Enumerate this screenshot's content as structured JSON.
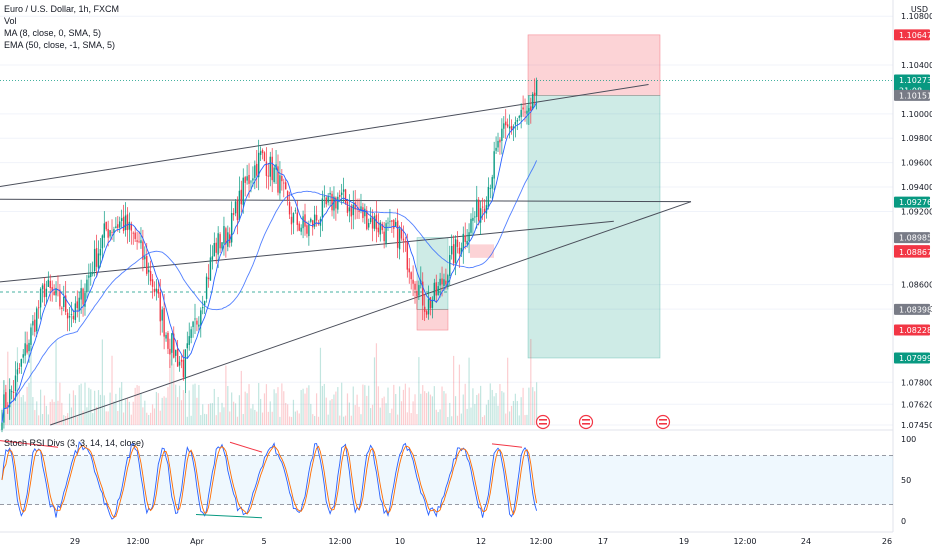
{
  "legend": {
    "title": "Euro / U.S. Dollar, 1h, FXCM",
    "vol": "Vol",
    "ma": "MA (8, close, 0, SMA, 5)",
    "ema": "EMA (50, close, -1, SMA, 5)",
    "stoch": "Stoch RSI Divs (3, 3, 14, 14, close)"
  },
  "price_axis": {
    "currency": "USD",
    "ticks": [
      "1.10800",
      "1.10400",
      "1.10000",
      "1.09800",
      "1.09600",
      "1.09400",
      "1.09200",
      "1.08600",
      "1.08400",
      "1.07800",
      "1.07620",
      "1.07450"
    ],
    "tags": [
      {
        "label": "1.10647",
        "color": "#f23645",
        "style": "solid"
      },
      {
        "label": "1.10273",
        "sub": "21:08",
        "color": "#089981",
        "style": "solid"
      },
      {
        "label": "1.10151",
        "color": "#787b86",
        "style": "solid"
      },
      {
        "label": "1.09276",
        "color": "#089981",
        "style": "solid"
      },
      {
        "label": "1.08985",
        "color": "#787b86",
        "style": "solid"
      },
      {
        "label": "1.08879",
        "color": "#f23645",
        "style": "solid"
      },
      {
        "label": "1.08867",
        "color": "#f23645",
        "style": "solid"
      },
      {
        "label": "1.08398",
        "color": "#787b86",
        "style": "solid"
      },
      {
        "label": "1.08228",
        "color": "#f23645",
        "style": "solid"
      },
      {
        "label": "1.07999",
        "color": "#089981",
        "style": "solid"
      }
    ]
  },
  "osc_axis": {
    "ticks": [
      "100",
      "50",
      "0"
    ]
  },
  "time_axis": {
    "ticks": [
      "29",
      "12:00",
      "Apr",
      "5",
      "12:00",
      "10",
      "12",
      "12:00",
      "17",
      "19",
      "12:00",
      "24",
      "26"
    ]
  },
  "colors": {
    "up": "#089981",
    "down": "#f23645",
    "ma": "#2962ff",
    "ema": "#2962ff",
    "k": "#2962ff",
    "d": "#ff6d00"
  },
  "chart_data": {
    "type": "candlestick",
    "title": "Euro / U.S. Dollar, 1h, FXCM",
    "ylim": [
      1.0745,
      1.109
    ],
    "anchors": [
      [
        0,
        1.0758
      ],
      [
        6,
        1.0775
      ],
      [
        14,
        1.0815
      ],
      [
        22,
        1.0858
      ],
      [
        30,
        1.0845
      ],
      [
        38,
        1.0835
      ],
      [
        46,
        1.0872
      ],
      [
        54,
        1.0905
      ],
      [
        62,
        1.0912
      ],
      [
        70,
        1.0895
      ],
      [
        78,
        1.0862
      ],
      [
        86,
        1.0815
      ],
      [
        94,
        1.0792
      ],
      [
        102,
        1.0838
      ],
      [
        110,
        1.089
      ],
      [
        118,
        1.0905
      ],
      [
        126,
        1.0942
      ],
      [
        134,
        1.0965
      ],
      [
        142,
        1.095
      ],
      [
        150,
        1.0915
      ],
      [
        158,
        1.0905
      ],
      [
        166,
        1.092
      ],
      [
        174,
        1.0932
      ],
      [
        182,
        1.0922
      ],
      [
        190,
        1.0915
      ],
      [
        198,
        1.0905
      ],
      [
        206,
        1.09
      ],
      [
        214,
        1.0865
      ],
      [
        220,
        1.0842
      ],
      [
        226,
        1.0855
      ],
      [
        234,
        1.0885
      ],
      [
        242,
        1.0908
      ],
      [
        250,
        1.093
      ],
      [
        258,
        1.0978
      ],
      [
        264,
        1.099
      ],
      [
        270,
        1.1
      ],
      [
        274,
        1.0995
      ],
      [
        277,
        1.1027
      ]
    ],
    "ma_label": "MA (8, close, 0, SMA, 5)",
    "ema_label": "EMA (50, close, -1, SMA, 5)",
    "osc": {
      "name": "Stoch RSI Divs (3, 3, 14, 14, close)",
      "levels": [
        80,
        20
      ],
      "range": [
        0,
        100
      ]
    },
    "positions": [
      {
        "type": "short",
        "stop": 1.10647,
        "entry": 1.10151,
        "target": 1.07999
      },
      {
        "type": "long",
        "stop": 1.08228,
        "entry": 1.08398,
        "target": 1.08985
      }
    ],
    "trendlines": [
      {
        "p1": [
          -3,
          1.094
        ],
        "p2": [
          335,
          1.1024
        ]
      },
      {
        "p1": [
          -3,
          1.093
        ],
        "p2": [
          357,
          1.0928
        ]
      },
      {
        "p1": [
          -3,
          1.0862
        ],
        "p2": [
          317,
          1.0912
        ]
      },
      {
        "p1": [
          25,
          1.0745
        ],
        "p2": [
          357,
          1.0928
        ]
      }
    ]
  }
}
